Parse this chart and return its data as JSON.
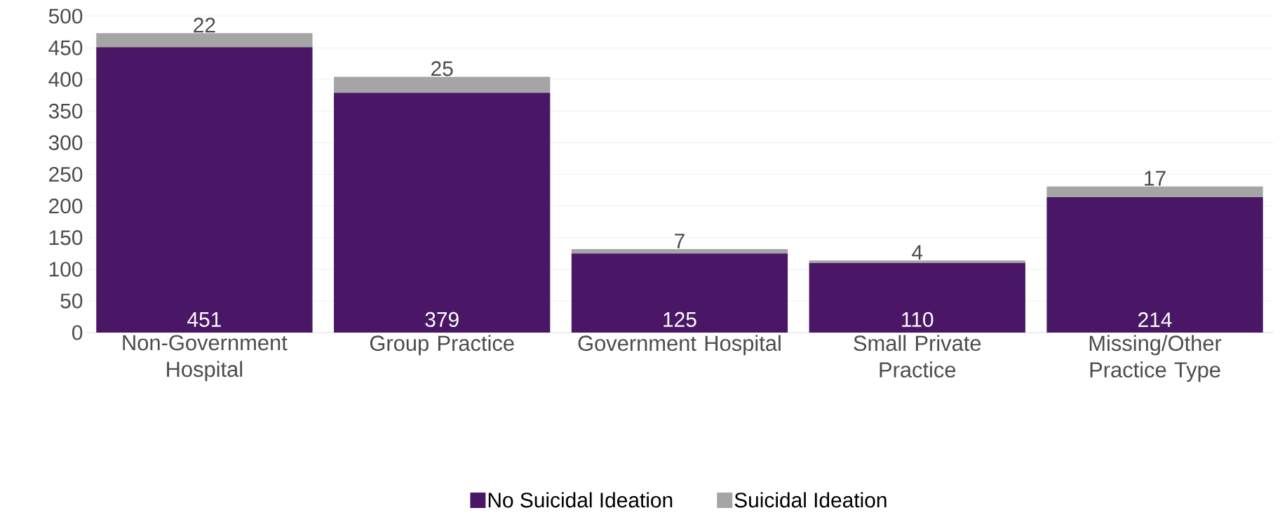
{
  "chart_data": {
    "type": "bar",
    "stacked": true,
    "categories": [
      "Non-Government Hospital",
      "Group Practice",
      "Government Hospital",
      "Small Private Practice",
      "Missing/Other Practice Type"
    ],
    "series": [
      {
        "name": "No Suicidal Ideation",
        "color": "#4a1766",
        "values": [
          451,
          379,
          125,
          110,
          214
        ]
      },
      {
        "name": "Suicidal Ideation",
        "color": "#a5a5a5",
        "values": [
          22,
          25,
          7,
          4,
          17
        ]
      }
    ],
    "ylim": [
      0,
      500
    ],
    "yticks": [
      0,
      50,
      100,
      150,
      200,
      250,
      300,
      350,
      400,
      450,
      500
    ],
    "grid": "y",
    "legend": "bottom",
    "data_labels": true
  }
}
